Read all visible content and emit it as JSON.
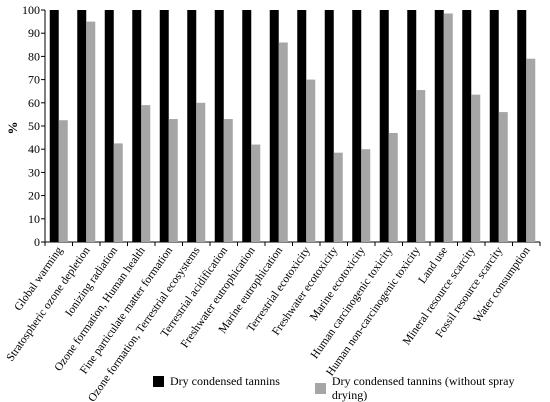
{
  "chart_data": {
    "type": "bar",
    "ylabel": "%",
    "ylim": [
      0,
      100
    ],
    "yticks": [
      "0",
      "10",
      "20",
      "30",
      "40",
      "50",
      "60",
      "70",
      "80",
      "90",
      "100"
    ],
    "grid": false,
    "legend_position": "bottom",
    "categories": [
      "Global warming",
      "Stratospheric ozone depletion",
      "Ionizing radiation",
      "Ozone formation, Human health",
      "Fine particulate matter formation",
      "Ozone formation, Terrestrial ecosystems",
      "Terrestrial acidification",
      "Freshwater eutrophication",
      "Marine eutrophication",
      "Terrestrial ecotoxicity",
      "Freshwater ecotoxicity",
      "Marine ecotoxicity",
      "Human carcinogenic toxicity",
      "Human non-carcinogenic toxicity",
      "Land use",
      "Mineral resource scarcity",
      "Fossil resource scarcity",
      "Water consumption"
    ],
    "series": [
      {
        "name": "Dry condensed tannins",
        "color": "#000000",
        "values": [
          100,
          100,
          100,
          100,
          100,
          100,
          100,
          100,
          100,
          100,
          100,
          100,
          100,
          100,
          100,
          100,
          100,
          100
        ]
      },
      {
        "name": "Dry condensed tannins (without spray drying)",
        "color": "#a6a6a6",
        "values": [
          52.5,
          95,
          42.5,
          59,
          53,
          60,
          53,
          42,
          86,
          70,
          38.5,
          40,
          47,
          65.5,
          98.5,
          63.5,
          56,
          79
        ]
      }
    ]
  }
}
